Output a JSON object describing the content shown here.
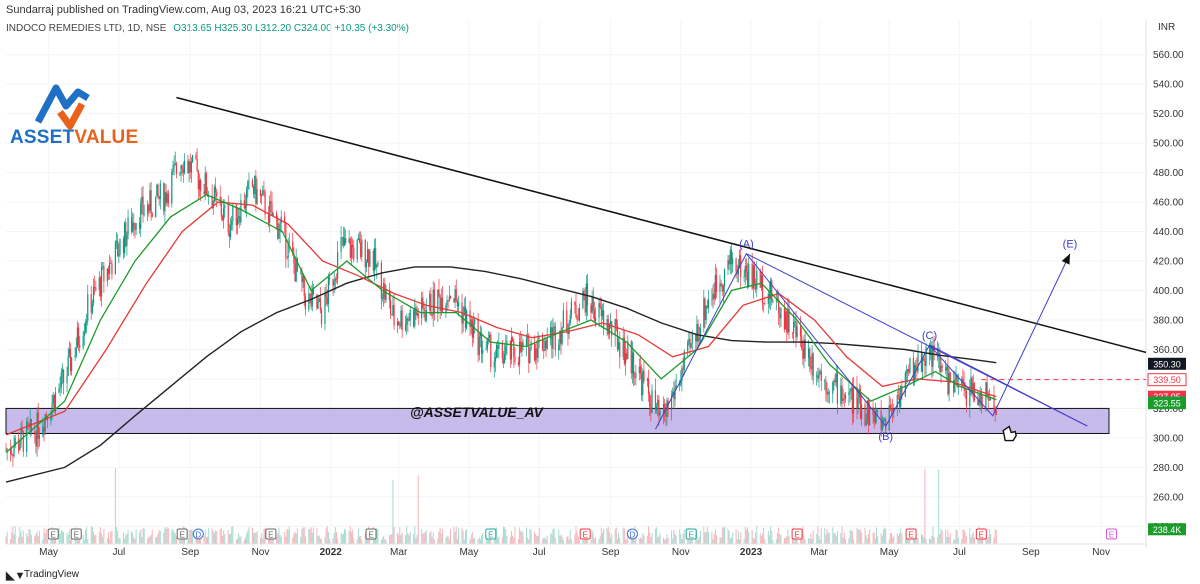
{
  "header": {
    "publisher": "Sundarraj published on TradingView.com, Aug 03, 2023 16:21 UTC+5:30",
    "symbol": "INDOCO REMEDIES LTD, 1D, NSE",
    "open": "O313.65",
    "high": "H325.30",
    "low": "L312.20",
    "close": "C324.00",
    "change": "+10.35 (+3.30%)",
    "currency": "INR"
  },
  "logo": {
    "text_a": "ASSET",
    "text_b": "VALUE"
  },
  "zone": {
    "label": "@ASSETVALUE_AV",
    "low": 303,
    "high": 320
  },
  "footer": {
    "brand": "TradingView"
  },
  "colors": {
    "up": "#089981",
    "down": "#f23645",
    "ema_fast": "#1a9b2a",
    "ema_mid": "#e53935",
    "ema_slow": "#222222",
    "zone": "#b4a4e6",
    "wave": "#3f3fc9",
    "trend": "#111111"
  },
  "chart_data": {
    "type": "candlestick",
    "y_axis": {
      "ticks": [
        240,
        260,
        280,
        300,
        320,
        340,
        360,
        380,
        400,
        420,
        440,
        460,
        480,
        500,
        520,
        540,
        560
      ],
      "range": [
        228,
        570
      ]
    },
    "x_axis": {
      "labels": [
        {
          "t": "May",
          "d": "2021-05-01"
        },
        {
          "t": "Jul",
          "d": "2021-07-01"
        },
        {
          "t": "Sep",
          "d": "2021-09-01"
        },
        {
          "t": "Nov",
          "d": "2021-11-01"
        },
        {
          "t": "2022",
          "d": "2022-01-01"
        },
        {
          "t": "Mar",
          "d": "2022-03-01"
        },
        {
          "t": "May",
          "d": "2022-05-01"
        },
        {
          "t": "Jul",
          "d": "2022-07-01"
        },
        {
          "t": "Sep",
          "d": "2022-09-01"
        },
        {
          "t": "Nov",
          "d": "2022-11-01"
        },
        {
          "t": "2023",
          "d": "2023-01-01"
        },
        {
          "t": "Mar",
          "d": "2023-03-01"
        },
        {
          "t": "May",
          "d": "2023-05-01"
        },
        {
          "t": "Jul",
          "d": "2023-07-01"
        },
        {
          "t": "Sep",
          "d": "2023-09-01"
        },
        {
          "t": "Nov",
          "d": "2023-11-01"
        }
      ],
      "range": [
        "2021-03-25",
        "2023-12-10"
      ]
    },
    "price_path": [
      [
        "2021-03-25",
        292
      ],
      [
        "2021-04-20",
        305
      ],
      [
        "2021-05-15",
        340
      ],
      [
        "2021-06-05",
        390
      ],
      [
        "2021-06-25",
        420
      ],
      [
        "2021-07-15",
        450
      ],
      [
        "2021-08-10",
        465
      ],
      [
        "2021-08-25",
        490
      ],
      [
        "2021-09-15",
        470
      ],
      [
        "2021-10-05",
        445
      ],
      [
        "2021-10-25",
        470
      ],
      [
        "2021-11-20",
        440
      ],
      [
        "2021-12-10",
        395
      ],
      [
        "2021-12-25",
        385
      ],
      [
        "2022-01-10",
        430
      ],
      [
        "2022-02-05",
        425
      ],
      [
        "2022-02-25",
        380
      ],
      [
        "2022-03-20",
        385
      ],
      [
        "2022-04-15",
        400
      ],
      [
        "2022-05-10",
        365
      ],
      [
        "2022-05-25",
        355
      ],
      [
        "2022-06-20",
        360
      ],
      [
        "2022-07-15",
        370
      ],
      [
        "2022-08-10",
        395
      ],
      [
        "2022-09-05",
        370
      ],
      [
        "2022-09-25",
        345
      ],
      [
        "2022-10-15",
        310
      ],
      [
        "2022-11-05",
        350
      ],
      [
        "2022-11-25",
        395
      ],
      [
        "2022-12-15",
        420
      ],
      [
        "2023-01-01",
        410
      ],
      [
        "2023-01-20",
        395
      ],
      [
        "2023-02-10",
        370
      ],
      [
        "2023-03-05",
        340
      ],
      [
        "2023-04-01",
        325
      ],
      [
        "2023-04-25",
        310
      ],
      [
        "2023-05-20",
        345
      ],
      [
        "2023-06-05",
        360
      ],
      [
        "2023-06-25",
        335
      ],
      [
        "2023-07-15",
        330
      ],
      [
        "2023-08-02",
        324
      ]
    ],
    "ema_fast": [
      [
        "2021-03-25",
        290
      ],
      [
        "2021-05-15",
        325
      ],
      [
        "2021-06-15",
        380
      ],
      [
        "2021-07-15",
        420
      ],
      [
        "2021-08-15",
        450
      ],
      [
        "2021-09-15",
        465
      ],
      [
        "2021-10-15",
        455
      ],
      [
        "2021-11-20",
        440
      ],
      [
        "2021-12-15",
        400
      ],
      [
        "2022-01-15",
        420
      ],
      [
        "2022-02-15",
        400
      ],
      [
        "2022-03-20",
        385
      ],
      [
        "2022-04-20",
        385
      ],
      [
        "2022-05-20",
        365
      ],
      [
        "2022-06-20",
        362
      ],
      [
        "2022-07-20",
        372
      ],
      [
        "2022-08-15",
        380
      ],
      [
        "2022-09-15",
        365
      ],
      [
        "2022-10-15",
        340
      ],
      [
        "2022-11-15",
        360
      ],
      [
        "2022-12-15",
        400
      ],
      [
        "2023-01-10",
        405
      ],
      [
        "2023-02-10",
        380
      ],
      [
        "2023-03-10",
        350
      ],
      [
        "2023-04-15",
        325
      ],
      [
        "2023-05-15",
        335
      ],
      [
        "2023-06-10",
        345
      ],
      [
        "2023-07-01",
        335
      ],
      [
        "2023-08-02",
        326
      ]
    ],
    "ema_mid": [
      [
        "2021-03-25",
        302
      ],
      [
        "2021-05-15",
        318
      ],
      [
        "2021-06-20",
        360
      ],
      [
        "2021-07-25",
        405
      ],
      [
        "2021-08-25",
        440
      ],
      [
        "2021-09-25",
        460
      ],
      [
        "2021-10-25",
        458
      ],
      [
        "2021-11-25",
        445
      ],
      [
        "2021-12-25",
        420
      ],
      [
        "2022-01-25",
        410
      ],
      [
        "2022-02-25",
        398
      ],
      [
        "2022-03-25",
        390
      ],
      [
        "2022-04-25",
        385
      ],
      [
        "2022-05-25",
        375
      ],
      [
        "2022-06-25",
        368
      ],
      [
        "2022-07-25",
        372
      ],
      [
        "2022-08-25",
        378
      ],
      [
        "2022-09-25",
        370
      ],
      [
        "2022-10-25",
        355
      ],
      [
        "2022-11-25",
        362
      ],
      [
        "2022-12-25",
        390
      ],
      [
        "2023-01-25",
        398
      ],
      [
        "2023-02-25",
        380
      ],
      [
        "2023-03-25",
        355
      ],
      [
        "2023-04-25",
        335
      ],
      [
        "2023-05-25",
        340
      ],
      [
        "2023-06-25",
        338
      ],
      [
        "2023-07-25",
        330
      ],
      [
        "2023-08-02",
        328
      ]
    ],
    "ema_slow": [
      [
        "2021-03-25",
        270
      ],
      [
        "2021-05-15",
        280
      ],
      [
        "2021-06-15",
        295
      ],
      [
        "2021-07-15",
        315
      ],
      [
        "2021-08-15",
        335
      ],
      [
        "2021-09-15",
        355
      ],
      [
        "2021-10-15",
        372
      ],
      [
        "2021-11-15",
        385
      ],
      [
        "2021-12-15",
        394
      ],
      [
        "2022-01-15",
        405
      ],
      [
        "2022-02-15",
        412
      ],
      [
        "2022-03-15",
        416
      ],
      [
        "2022-04-15",
        416
      ],
      [
        "2022-05-15",
        413
      ],
      [
        "2022-06-15",
        408
      ],
      [
        "2022-07-15",
        402
      ],
      [
        "2022-08-15",
        396
      ],
      [
        "2022-09-15",
        388
      ],
      [
        "2022-10-15",
        378
      ],
      [
        "2022-11-15",
        370
      ],
      [
        "2022-12-15",
        366
      ],
      [
        "2023-01-15",
        365
      ],
      [
        "2023-02-15",
        365
      ],
      [
        "2023-03-15",
        364
      ],
      [
        "2023-04-15",
        362
      ],
      [
        "2023-05-15",
        360
      ],
      [
        "2023-06-15",
        356
      ],
      [
        "2023-07-15",
        353
      ],
      [
        "2023-08-02",
        351
      ]
    ],
    "trendline": [
      [
        "2021-08-20",
        531
      ],
      [
        "2023-12-10",
        358
      ]
    ],
    "waves": [
      {
        "label": "",
        "d": "2022-10-10",
        "p": 306
      },
      {
        "label": "(A)",
        "d": "2022-12-28",
        "p": 425
      },
      {
        "label": "(B)",
        "d": "2023-04-28",
        "p": 308
      },
      {
        "label": "(C)",
        "d": "2023-06-05",
        "p": 363
      },
      {
        "label": "",
        "d": "2023-07-30",
        "p": 315
      },
      {
        "label": "(E)",
        "d": "2023-10-05",
        "p": 425
      }
    ],
    "channel_lines": [
      [
        [
          "2022-12-28",
          425
        ],
        [
          "2023-10-20",
          308
        ]
      ],
      [
        [
          "2023-06-05",
          363
        ],
        [
          "2023-10-20",
          308
        ]
      ]
    ],
    "price_labels": [
      {
        "v": "350.30",
        "p": 350.3,
        "bg": "#131722",
        "fg": "#ffffff"
      },
      {
        "v": "339.50",
        "p": 339.5,
        "bg": "#ffffff",
        "fg": "#f23645"
      },
      {
        "v": "327.95",
        "p": 327.95,
        "bg": "#f23645",
        "fg": "#ffffff"
      },
      {
        "v": "324.00",
        "p": 324.0,
        "bg": "#089981",
        "fg": "#ffffff"
      },
      {
        "v": "323.55",
        "p": 323.55,
        "bg": "#1a9b2a",
        "fg": "#ffffff"
      },
      {
        "v": "238.4K",
        "p": 238.0,
        "bg": "#1a9b2a",
        "fg": "#ffffff"
      }
    ],
    "resistance_dashed": 339.5,
    "events": [
      {
        "t": "E",
        "d": "2021-05-05",
        "c": "#666"
      },
      {
        "t": "E",
        "d": "2021-05-25",
        "c": "#666"
      },
      {
        "t": "E",
        "d": "2021-08-25",
        "c": "#666"
      },
      {
        "t": "D",
        "d": "2021-09-08",
        "c": "#3d6fd6"
      },
      {
        "t": "E",
        "d": "2021-11-10",
        "c": "#666"
      },
      {
        "t": "E",
        "d": "2022-02-05",
        "c": "#666"
      },
      {
        "t": "E",
        "d": "2022-05-20",
        "c": "#26a69a"
      },
      {
        "t": "E",
        "d": "2022-08-10",
        "c": "#f23645"
      },
      {
        "t": "D",
        "d": "2022-09-20",
        "c": "#3d6fd6"
      },
      {
        "t": "E",
        "d": "2022-11-10",
        "c": "#26a69a"
      },
      {
        "t": "E",
        "d": "2023-02-10",
        "c": "#f23645"
      },
      {
        "t": "E",
        "d": "2023-05-20",
        "c": "#f23645"
      },
      {
        "t": "E",
        "d": "2023-07-20",
        "c": "#f23645"
      },
      {
        "t": "E",
        "d": "2023-11-10",
        "c": "#d35ad6"
      }
    ]
  }
}
